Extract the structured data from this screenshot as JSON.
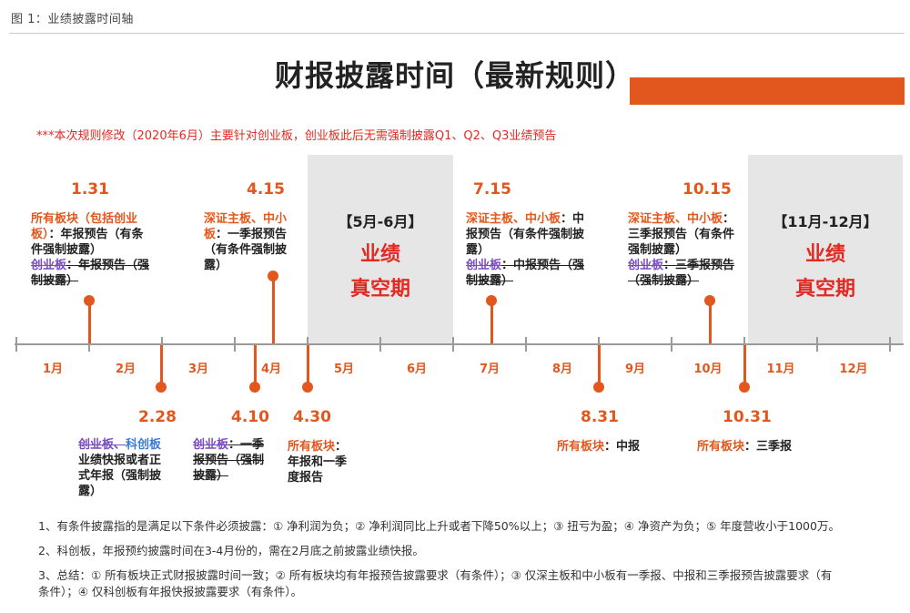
{
  "caption": "图 1：业绩披露时间轴",
  "title": "财报披露时间（最新规则）",
  "note": "***本次规则修改（2020年6月）主要针对创业板，创业板此后无需强制披露Q1、Q2、Q3业绩预告",
  "colors": {
    "accent": "#e2571d",
    "red": "#e02a22",
    "purple": "#7a4cc2",
    "blue": "#3a7bd5",
    "axis": "#9a9a9a",
    "band": "#e6e6e6"
  },
  "months": [
    "1月",
    "2月",
    "3月",
    "4月",
    "5月",
    "6月",
    "7月",
    "8月",
    "9月",
    "10月",
    "11月",
    "12月"
  ],
  "vacuum_periods": [
    {
      "range": "【5月-6月】",
      "line1": "业绩",
      "line2": "真空期"
    },
    {
      "range": "【11月-12月】",
      "line1": "业绩",
      "line2": "真空期"
    }
  ],
  "events_above": [
    {
      "date": "1.31",
      "lines": [
        {
          "text": "所有板块（包括创业",
          "cls": "orange"
        },
        {
          "text": "板）",
          "cls": "orange",
          "rest": "：年报预告（有条"
        },
        {
          "text": "件强制披露）"
        },
        {
          "text": "创业板",
          "cls": "purple strike",
          "rest": "：年报预告（强",
          "rest_cls": "strike"
        },
        {
          "text": "制披露）",
          "cls": "strike"
        }
      ]
    },
    {
      "date": "4.15",
      "lines": [
        {
          "text": "深证主板、中小",
          "cls": "orange"
        },
        {
          "text": "板",
          "cls": "orange",
          "rest": "：一季报预告"
        },
        {
          "text": "（有条件强制披"
        },
        {
          "text": "露）"
        }
      ]
    },
    {
      "date": "7.15",
      "lines": [
        {
          "text": "深证主板、中小板",
          "cls": "orange",
          "rest": "：中"
        },
        {
          "text": "报预告（有条件强制披"
        },
        {
          "text": "露）"
        },
        {
          "text": "创业板",
          "cls": "purple strike",
          "rest": "：中报预告（强",
          "rest_cls": "strike"
        },
        {
          "text": "制披露）",
          "cls": "strike"
        }
      ]
    },
    {
      "date": "10.15",
      "lines": [
        {
          "text": "深证主板、中小板",
          "cls": "orange",
          "rest": "："
        },
        {
          "text": "三季报预告（有条件"
        },
        {
          "text": "强制披露）"
        },
        {
          "text": "创业板",
          "cls": "purple strike",
          "rest": "：三季报预告",
          "rest_cls": "strike"
        },
        {
          "text": "（强制披露）",
          "cls": "strike"
        }
      ]
    }
  ],
  "events_below": [
    {
      "date": "2.28",
      "lines": [
        {
          "text": "创业板、",
          "cls": "purple strike",
          "rest": "科创板",
          "rest_cls": "blue"
        },
        {
          "text": "业绩快报或者正"
        },
        {
          "text": "式年报（强制披"
        },
        {
          "text": "露）"
        }
      ]
    },
    {
      "date": "4.10",
      "lines": [
        {
          "text": "创业板",
          "cls": "purple strike",
          "rest": "：一季",
          "rest_cls": "strike"
        },
        {
          "text": "报预告（强制",
          "cls": "strike"
        },
        {
          "text": "披露）",
          "cls": "strike"
        }
      ]
    },
    {
      "date": "4.30",
      "lines": [
        {
          "text": "所有板块",
          "cls": "orange",
          "rest": "："
        },
        {
          "text": "年报和一季"
        },
        {
          "text": "度报告"
        }
      ]
    },
    {
      "date": "8.31",
      "lines": [
        {
          "text": "所有板块",
          "cls": "orange",
          "rest": "：中报"
        }
      ]
    },
    {
      "date": "10.31",
      "lines": [
        {
          "text": "所有板块",
          "cls": "orange",
          "rest": "：三季报"
        }
      ]
    }
  ],
  "footnotes": [
    "1、有条件披露指的是满足以下条件必须披露：① 净利润为负；② 净利润同比上升或者下降50%以上；③ 扭亏为盈；④ 净资产为负；⑤ 年度营收小于1000万。",
    "2、科创板，年报预约披露时间在3-4月份的，需在2月底之前披露业绩快报。",
    "3、总结：① 所有板块正式财报披露时间一致；② 所有板块均有年报预告披露要求（有条件）；③ 仅深主板和中小板有一季报、中报和三季报预告披露要求（有",
    "条件）；④ 仅科创板有年报快报披露要求（有条件）。"
  ]
}
